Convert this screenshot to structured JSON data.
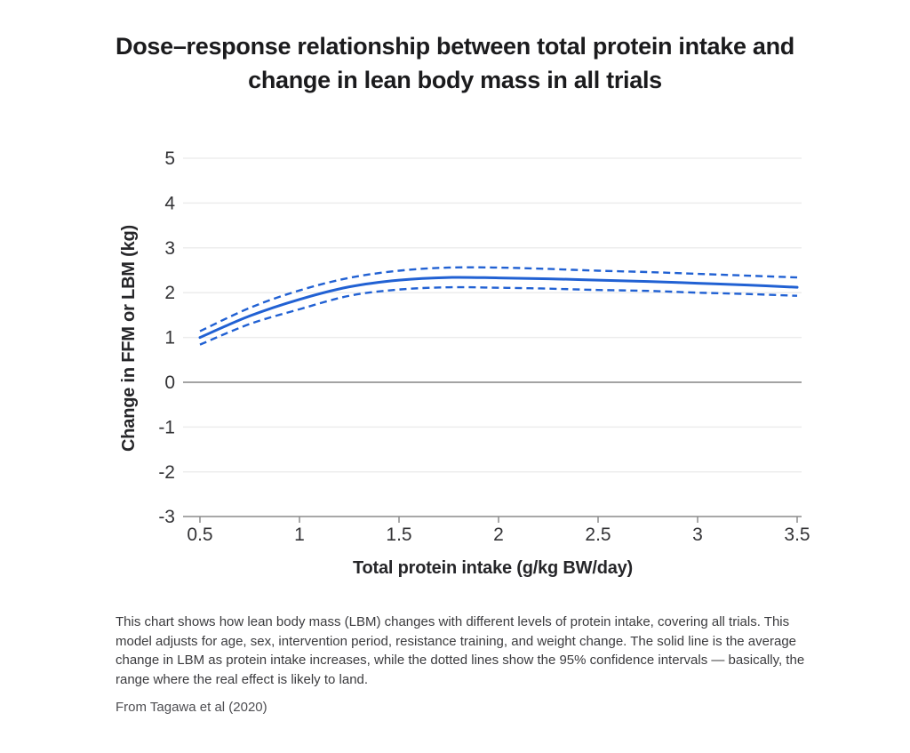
{
  "title": "Dose–response relationship between total protein intake and change in lean body mass in all trials",
  "chart_data": {
    "type": "line",
    "title": "Dose–response relationship between total protein intake and change in lean body mass in all trials",
    "xlabel": "Total protein intake (g/kg BW/day)",
    "ylabel": "Change in FFM or LBM (kg)",
    "xlim": [
      0.42,
      3.52
    ],
    "ylim": [
      -3,
      5
    ],
    "grid": true,
    "legend_position": "none",
    "x_ticks": [
      0.5,
      1,
      1.5,
      2,
      2.5,
      3,
      3.5
    ],
    "x_tick_labels": [
      "0.5",
      "1",
      "1.5",
      "2",
      "2.5",
      "3",
      "3.5"
    ],
    "y_ticks": [
      5,
      4,
      3,
      2,
      1,
      0,
      -1,
      -2,
      -3
    ],
    "y_tick_labels": [
      "5",
      "4",
      "3",
      "2",
      "1",
      "0",
      "-1",
      "-2",
      "-3"
    ],
    "x": [
      0.5,
      0.75,
      1.0,
      1.25,
      1.5,
      1.75,
      2.0,
      2.25,
      2.5,
      2.75,
      3.0,
      3.25,
      3.5
    ],
    "series": [
      {
        "name": "Average change in LBM (solid line)",
        "style": "solid",
        "values": [
          1.0,
          1.48,
          1.85,
          2.13,
          2.28,
          2.34,
          2.33,
          2.31,
          2.28,
          2.25,
          2.21,
          2.17,
          2.12
        ]
      },
      {
        "name": "95% confidence interval upper (dotted line)",
        "style": "dashed",
        "values": [
          1.14,
          1.66,
          2.05,
          2.33,
          2.49,
          2.56,
          2.56,
          2.53,
          2.49,
          2.46,
          2.42,
          2.38,
          2.34
        ]
      },
      {
        "name": "95% confidence interval lower (dotted line)",
        "style": "dashed",
        "values": [
          0.84,
          1.3,
          1.63,
          1.93,
          2.07,
          2.12,
          2.11,
          2.09,
          2.06,
          2.04,
          2.0,
          1.97,
          1.93
        ]
      }
    ]
  },
  "colors": {
    "line": "#2161d3",
    "grid": "#ededed",
    "zero_line": "#a3a3a3",
    "axis": "#8c8c8c",
    "tick_text": "#333336"
  },
  "caption": "This chart shows how lean body mass (LBM) changes with different levels of protein intake, covering all trials. This model adjusts for age, sex, intervention period, resistance training, and weight change. The solid line is the average change in LBM as protein intake increases, while the dotted lines show the 95% confidence intervals — basically, the range where the real effect is likely to land.",
  "source": "From Tagawa et al (2020)"
}
